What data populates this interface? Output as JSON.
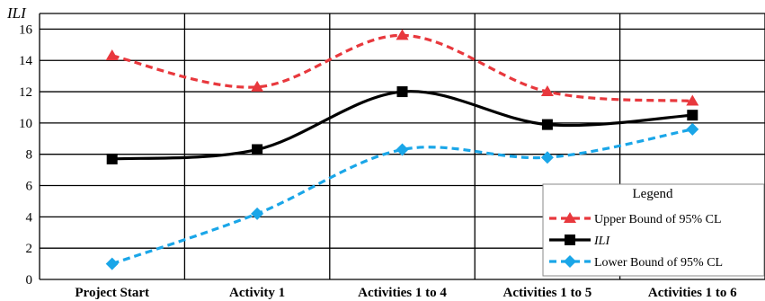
{
  "chart_data": {
    "type": "line",
    "ylabel": "ILI",
    "xlabel": "",
    "title": "",
    "ylim": [
      0,
      17
    ],
    "yticks": [
      0,
      2,
      4,
      6,
      8,
      10,
      12,
      14,
      16
    ],
    "categories": [
      "Project Start",
      "Activity 1",
      "Activities 1 to 4",
      "Activities 1 to 5",
      "Activities 1 to 6"
    ],
    "grid": true,
    "legend": {
      "title": "Legend",
      "placement": "bottom-right"
    },
    "series": [
      {
        "name": "Upper Bound of 95% CL",
        "values": [
          14.3,
          12.3,
          15.6,
          12.0,
          11.4
        ],
        "color": "#e8383d",
        "dash": "dashed",
        "marker": "triangle"
      },
      {
        "name": "ILI",
        "values": [
          7.7,
          8.3,
          12.0,
          9.9,
          10.5
        ],
        "color": "#000000",
        "dash": "solid",
        "marker": "square"
      },
      {
        "name": "Lower Bound of 95% CL",
        "values": [
          1.0,
          4.2,
          8.3,
          7.8,
          9.6
        ],
        "color": "#1aa6e8",
        "dash": "dashed",
        "marker": "diamond"
      }
    ]
  }
}
